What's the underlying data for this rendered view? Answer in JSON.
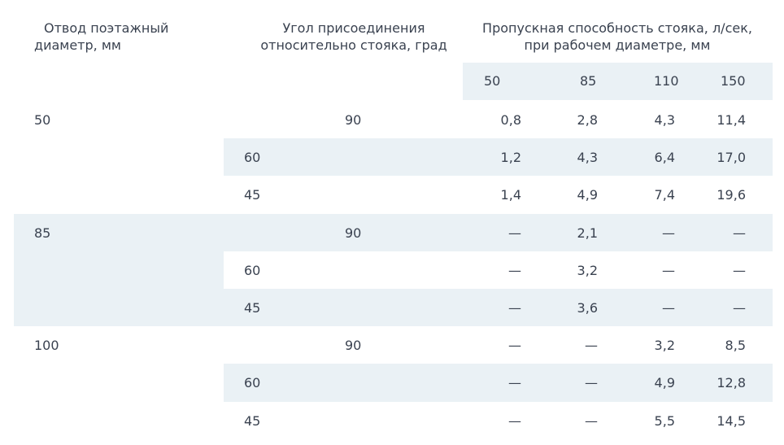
{
  "headers": {
    "branch_line1": "Отвод поэтажный",
    "branch_line2": "диаметр, мм",
    "angle_line1": "Угол присоединения",
    "angle_line2": "относительно стояка, град",
    "capacity_line1": "Пропускная способность стояка, л/сек,",
    "capacity_line2": "при рабочем диаметре, мм"
  },
  "diameters": [
    "50",
    "85",
    "110",
    "150"
  ],
  "groups": [
    {
      "branch": "50",
      "rows": [
        {
          "angle": "90",
          "values": [
            "0,8",
            "2,8",
            "4,3",
            "11,4"
          ]
        },
        {
          "angle": "60",
          "values": [
            "1,2",
            "4,3",
            "6,4",
            "17,0"
          ]
        },
        {
          "angle": "45",
          "values": [
            "1,4",
            "4,9",
            "7,4",
            "19,6"
          ]
        }
      ]
    },
    {
      "branch": "85",
      "rows": [
        {
          "angle": "90",
          "values": [
            "—",
            "2,1",
            "—",
            "—"
          ]
        },
        {
          "angle": "60",
          "values": [
            "—",
            "3,2",
            "—",
            "—"
          ]
        },
        {
          "angle": "45",
          "values": [
            "—",
            "3,6",
            "—",
            "—"
          ]
        }
      ]
    },
    {
      "branch": "100",
      "rows": [
        {
          "angle": "90",
          "values": [
            "—",
            "—",
            "3,2",
            "8,5"
          ]
        },
        {
          "angle": "60",
          "values": [
            "—",
            "—",
            "4,9",
            "12,8"
          ]
        },
        {
          "angle": "45",
          "values": [
            "—",
            "—",
            "5,5",
            "14,5"
          ]
        }
      ]
    }
  ],
  "colors": {
    "text": "#3a4250",
    "stripe": "#eaf1f5",
    "background": "#ffffff"
  }
}
